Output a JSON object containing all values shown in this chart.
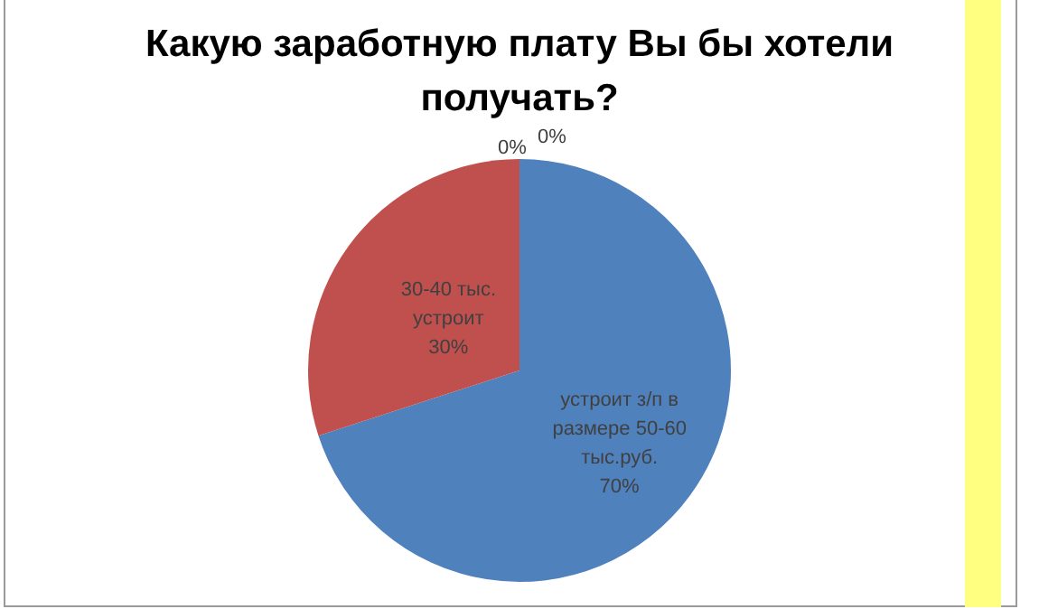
{
  "chart_data": {
    "type": "pie",
    "title": "Какую заработную плату Вы бы хотели получать?",
    "categories": [
      "устроит з/п в размере 50-60 тыс.руб.",
      "30-40 тыс. устроит",
      null,
      null
    ],
    "values": [
      70,
      30,
      0,
      0
    ],
    "value_labels": [
      "70%",
      "30%",
      "0%",
      "0%"
    ],
    "colors": [
      "#4f81bd",
      "#c0504d",
      "#9bbb59",
      "#8064a2"
    ],
    "legend": false
  }
}
